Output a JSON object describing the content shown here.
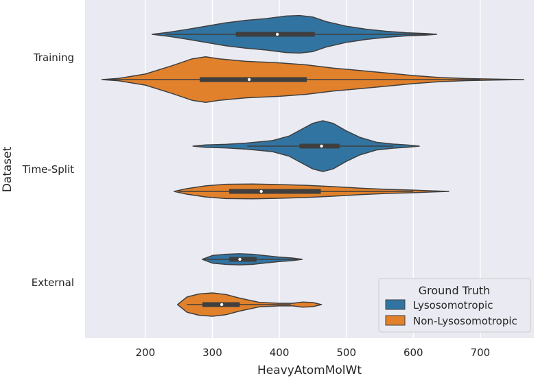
{
  "chart_data": {
    "type": "violin",
    "orientation": "horizontal",
    "title": "",
    "xlabel": "HeavyAtomMolWt",
    "ylabel": "Dataset",
    "xticks": [
      200,
      300,
      400,
      500,
      600,
      700
    ],
    "xlim": [
      110,
      780
    ],
    "categories": [
      "Training",
      "Time-Split",
      "External"
    ],
    "grid": true,
    "background": "#eaeaf2",
    "legend": {
      "title": "Ground Truth",
      "placement": "lower-right",
      "entries": [
        "Lysosomotropic",
        "Non-Lysosomotropic"
      ]
    },
    "series": [
      {
        "name": "Lysosomotropic",
        "color": "#3274a1",
        "groups": [
          {
            "category": "Training",
            "min": 210,
            "q1": 335,
            "median": 397,
            "q3": 453,
            "max": 635,
            "whisker_low": 230,
            "whisker_high": 620,
            "density": [
              [
                210,
                0.0
              ],
              [
                235,
                0.08
              ],
              [
                260,
                0.18
              ],
              [
                290,
                0.32
              ],
              [
                320,
                0.45
              ],
              [
                350,
                0.55
              ],
              [
                380,
                0.62
              ],
              [
                410,
                0.72
              ],
              [
                430,
                0.74
              ],
              [
                450,
                0.68
              ],
              [
                470,
                0.5
              ],
              [
                500,
                0.32
              ],
              [
                530,
                0.2
              ],
              [
                560,
                0.12
              ],
              [
                590,
                0.06
              ],
              [
                620,
                0.03
              ],
              [
                635,
                0.0
              ]
            ]
          },
          {
            "category": "Time-Split",
            "min": 271,
            "q1": 430,
            "median": 463,
            "q3": 490,
            "max": 609,
            "whisker_low": 352,
            "whisker_high": 570,
            "density": [
              [
                271,
                0.0
              ],
              [
                290,
                0.05
              ],
              [
                320,
                0.07
              ],
              [
                350,
                0.12
              ],
              [
                390,
                0.22
              ],
              [
                415,
                0.4
              ],
              [
                430,
                0.62
              ],
              [
                450,
                0.9
              ],
              [
                465,
                1.0
              ],
              [
                480,
                0.9
              ],
              [
                500,
                0.6
              ],
              [
                520,
                0.35
              ],
              [
                545,
                0.15
              ],
              [
                570,
                0.08
              ],
              [
                590,
                0.05
              ],
              [
                609,
                0.0
              ]
            ]
          },
          {
            "category": "External",
            "min": 285,
            "q1": 325,
            "median": 341,
            "q3": 366,
            "max": 434,
            "whisker_low": 287,
            "whisker_high": 432,
            "density": [
              [
                285,
                0.0
              ],
              [
                300,
                0.15
              ],
              [
                320,
                0.2
              ],
              [
                340,
                0.22
              ],
              [
                360,
                0.2
              ],
              [
                380,
                0.14
              ],
              [
                400,
                0.09
              ],
              [
                420,
                0.05
              ],
              [
                434,
                0.0
              ]
            ]
          }
        ]
      },
      {
        "name": "Non-Lysosomotropic",
        "color": "#e1812c",
        "groups": [
          {
            "category": "Training",
            "min": 135,
            "q1": 281,
            "median": 355,
            "q3": 441,
            "max": 765,
            "whisker_low": 140,
            "whisker_high": 700,
            "density": [
              [
                135,
                0.0
              ],
              [
                160,
                0.05
              ],
              [
                200,
                0.22
              ],
              [
                240,
                0.55
              ],
              [
                270,
                0.82
              ],
              [
                290,
                0.9
              ],
              [
                310,
                0.82
              ],
              [
                350,
                0.72
              ],
              [
                400,
                0.66
              ],
              [
                440,
                0.58
              ],
              [
                480,
                0.45
              ],
              [
                520,
                0.36
              ],
              [
                560,
                0.26
              ],
              [
                600,
                0.16
              ],
              [
                640,
                0.08
              ],
              [
                680,
                0.04
              ],
              [
                720,
                0.02
              ],
              [
                765,
                0.0
              ]
            ]
          },
          {
            "category": "Time-Split",
            "min": 243,
            "q1": 325,
            "median": 373,
            "q3": 462,
            "max": 653,
            "whisker_low": 250,
            "whisker_high": 600,
            "density": [
              [
                243,
                0.0
              ],
              [
                260,
                0.1
              ],
              [
                290,
                0.22
              ],
              [
                320,
                0.28
              ],
              [
                360,
                0.29
              ],
              [
                400,
                0.27
              ],
              [
                440,
                0.24
              ],
              [
                480,
                0.19
              ],
              [
                520,
                0.13
              ],
              [
                560,
                0.08
              ],
              [
                600,
                0.05
              ],
              [
                630,
                0.02
              ],
              [
                653,
                0.0
              ]
            ]
          },
          {
            "category": "External",
            "min": 248,
            "q1": 285,
            "median": 314,
            "q3": 341,
            "max": 463,
            "whisker_low": 262,
            "whisker_high": 417,
            "density": [
              [
                248,
                0.0
              ],
              [
                262,
                0.3
              ],
              [
                280,
                0.42
              ],
              [
                300,
                0.46
              ],
              [
                320,
                0.4
              ],
              [
                340,
                0.26
              ],
              [
                370,
                0.09
              ],
              [
                400,
                0.05
              ],
              [
                420,
                0.05
              ],
              [
                435,
                0.1
              ],
              [
                450,
                0.08
              ],
              [
                463,
                0.0
              ]
            ]
          }
        ]
      }
    ]
  }
}
